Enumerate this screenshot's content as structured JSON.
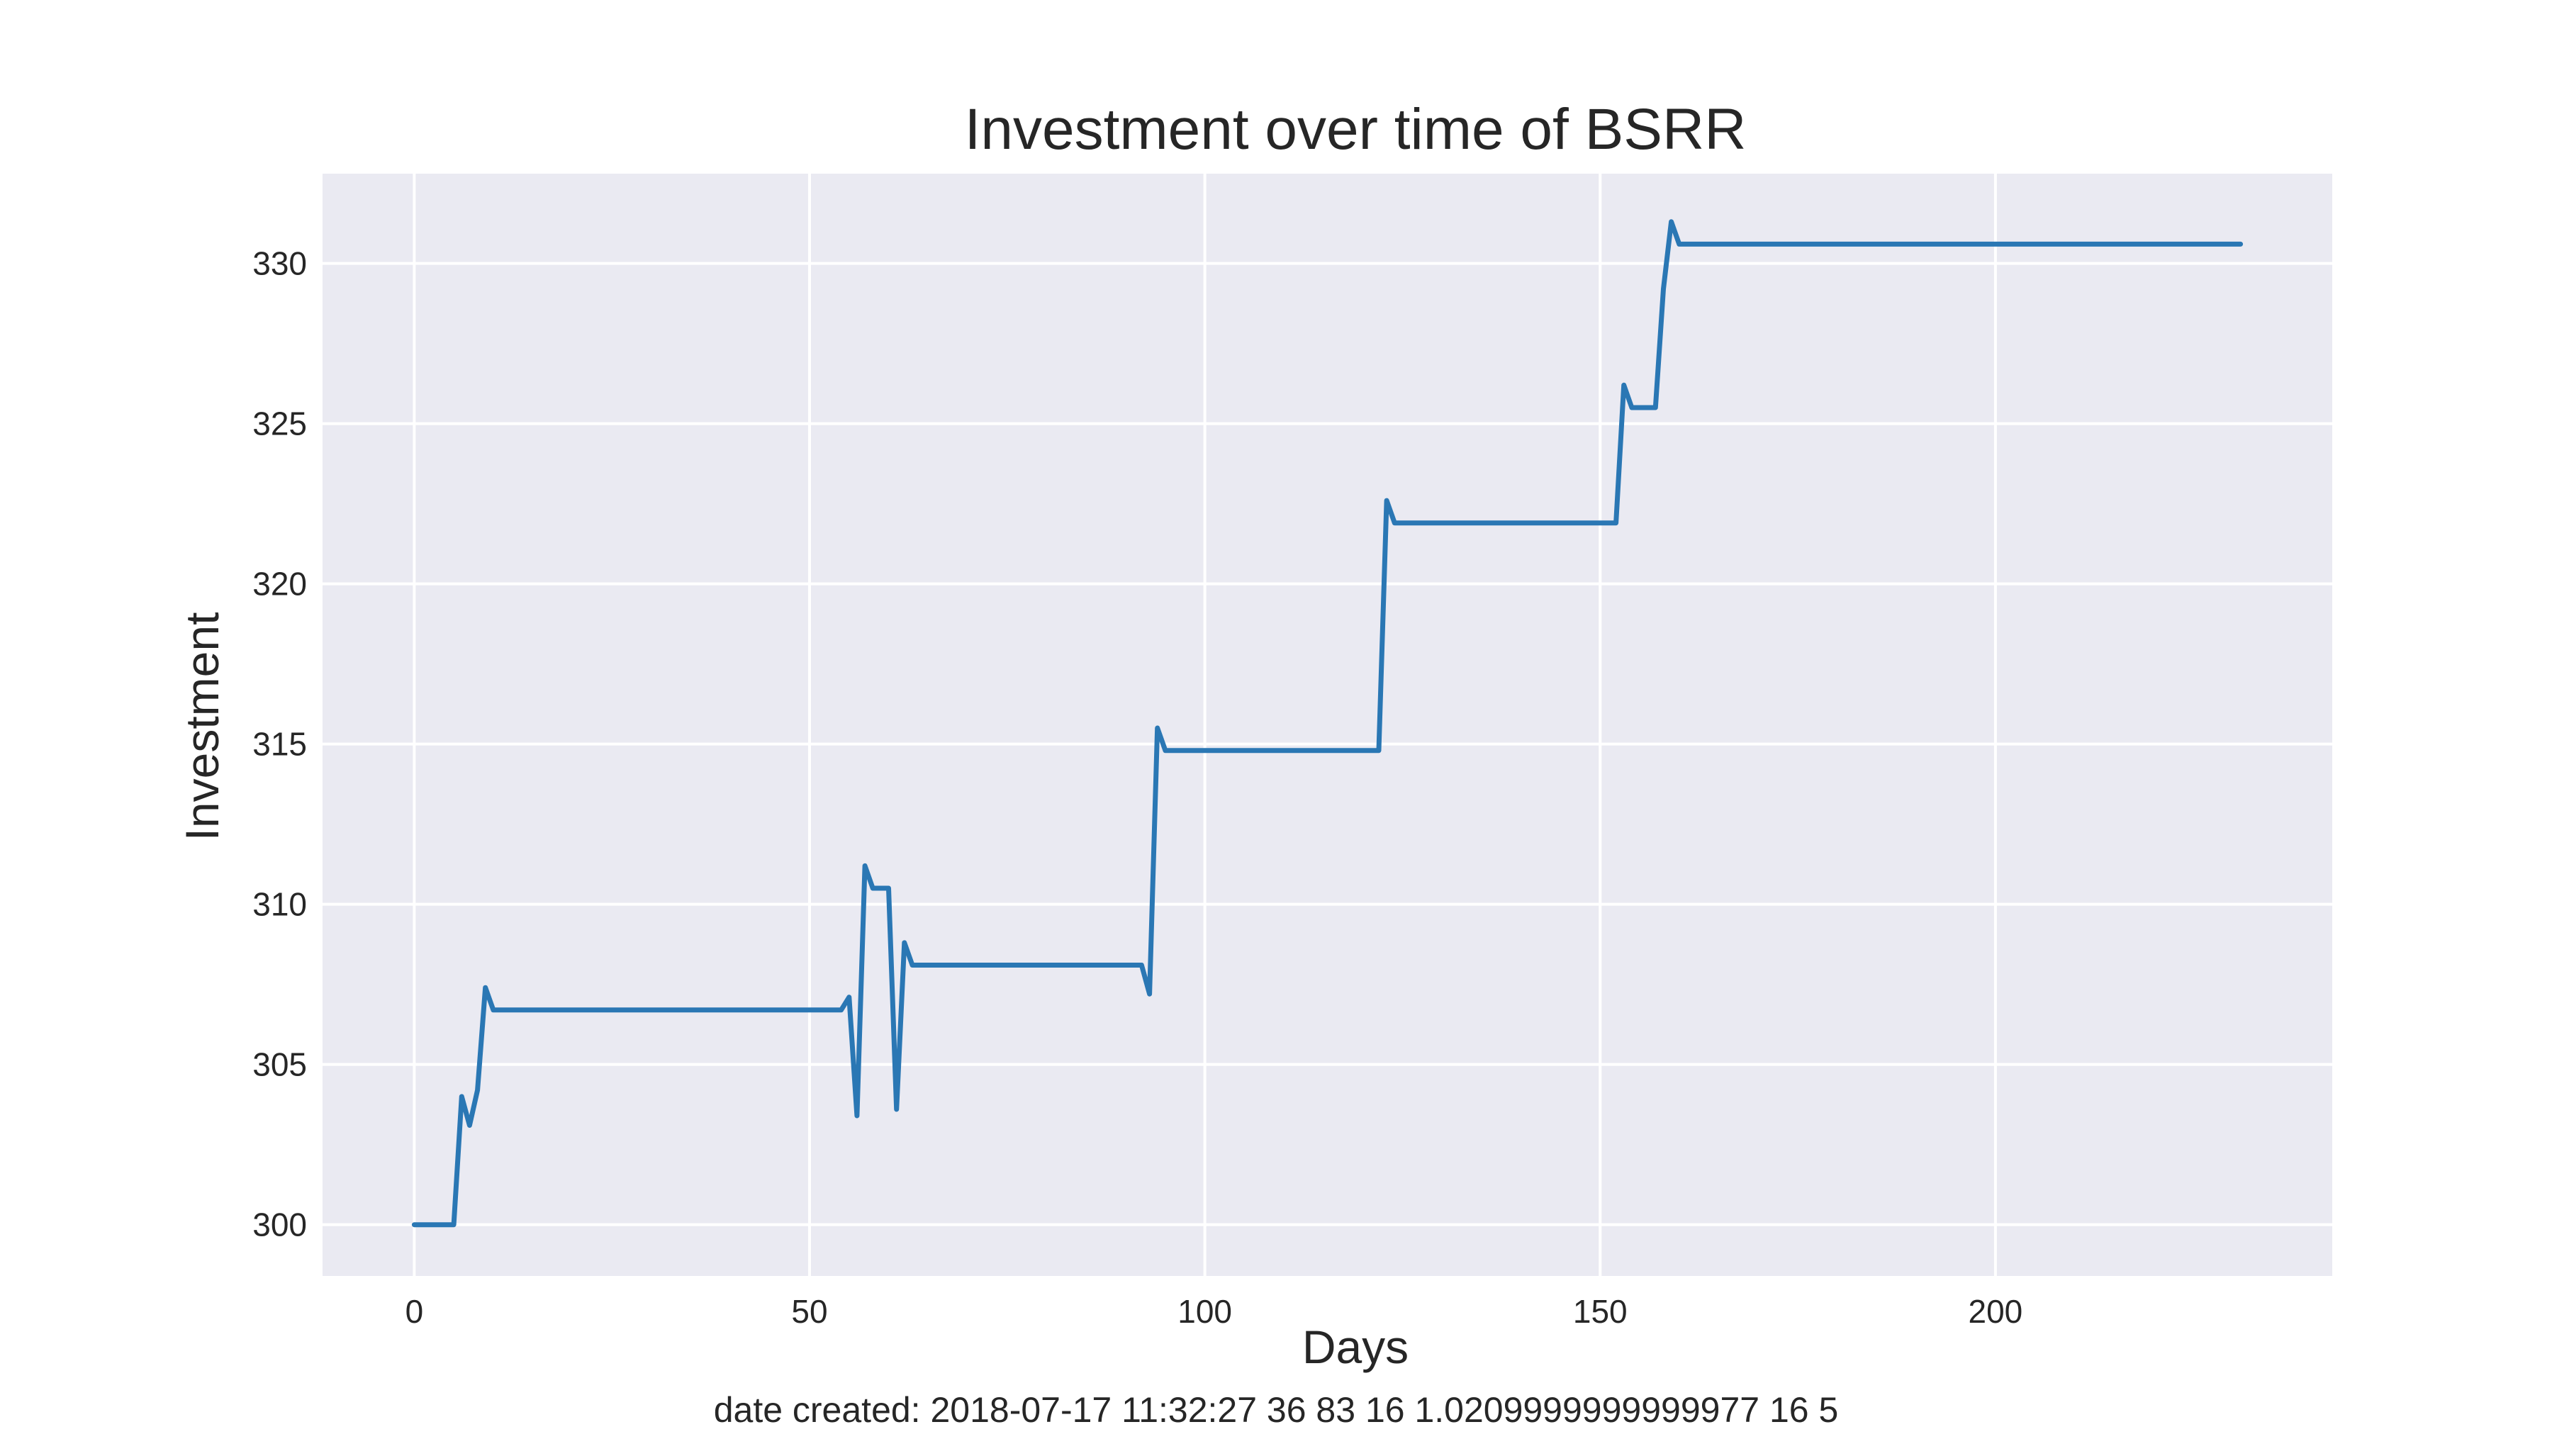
{
  "chart_data": {
    "type": "line",
    "title": "Investment over time of BSRR",
    "xlabel": "Days",
    "ylabel": "Investment",
    "footer": "date created: 2018-07-17 11:32:27 36 83 16 1.0209999999999977 16 5",
    "xlim": [
      -11.6,
      242.6
    ],
    "ylim": [
      298.4,
      332.8
    ],
    "x_ticks": [
      0,
      50,
      100,
      150,
      200
    ],
    "x_tick_labels": [
      "0",
      "50",
      "100",
      "150",
      "200"
    ],
    "y_ticks": [
      300,
      305,
      310,
      315,
      320,
      325,
      330
    ],
    "y_tick_labels": [
      "300",
      "305",
      "310",
      "315",
      "320",
      "325",
      "330"
    ],
    "grid": true,
    "background_color": "#EAEAF2",
    "grid_color": "#FFFFFF",
    "series": [
      {
        "color": "#2A77B4",
        "points": [
          [
            0,
            300
          ],
          [
            5,
            300
          ],
          [
            6,
            304
          ],
          [
            7,
            303.1
          ],
          [
            8,
            304.2
          ],
          [
            9,
            307.4
          ],
          [
            10,
            306.7
          ],
          [
            54,
            306.7
          ],
          [
            55,
            307.1
          ],
          [
            56,
            303.4
          ],
          [
            57,
            311.2
          ],
          [
            58,
            310.5
          ],
          [
            60,
            310.5
          ],
          [
            61,
            303.6
          ],
          [
            62,
            308.8
          ],
          [
            63,
            308.1
          ],
          [
            92,
            308.1
          ],
          [
            93,
            307.2
          ],
          [
            94,
            315.5
          ],
          [
            95,
            314.8
          ],
          [
            122,
            314.8
          ],
          [
            123,
            322.6
          ],
          [
            124,
            321.9
          ],
          [
            152,
            321.9
          ],
          [
            153,
            326.2
          ],
          [
            154,
            325.5
          ],
          [
            157,
            325.5
          ],
          [
            158,
            329.2
          ],
          [
            159,
            331.3
          ],
          [
            160,
            330.6
          ],
          [
            231,
            330.6
          ]
        ]
      }
    ]
  }
}
